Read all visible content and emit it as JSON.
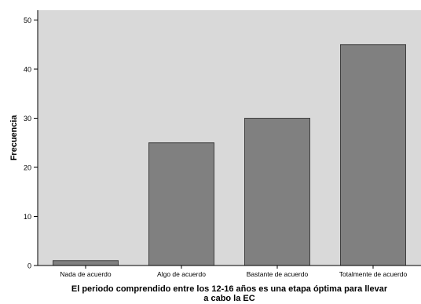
{
  "chart_data": {
    "type": "bar",
    "title": "",
    "xlabel": "El periodo comprendido entre los 12-16 años es una etapa óptima para llevar a cabo la EC",
    "xlabel_lines": [
      "El periodo comprendido entre los 12-16 años es una etapa óptima para llevar",
      "a cabo la EC"
    ],
    "ylabel": "Frecuencia",
    "categories": [
      "Nada de acuerdo",
      "Algo de acuerdo",
      "Bastante de acuerdo",
      "Totalmente de acuerdo"
    ],
    "values": [
      1,
      25,
      30,
      45
    ],
    "ylim": [
      0,
      52
    ],
    "yticks": [
      0,
      10,
      20,
      30,
      40,
      50
    ],
    "grid": false,
    "legend": "none",
    "colors": {
      "plot_background": "#d9d9d9",
      "bar_fill": "#808080",
      "bar_stroke": "#404040",
      "axis": "#000000",
      "text": "#000000"
    }
  }
}
